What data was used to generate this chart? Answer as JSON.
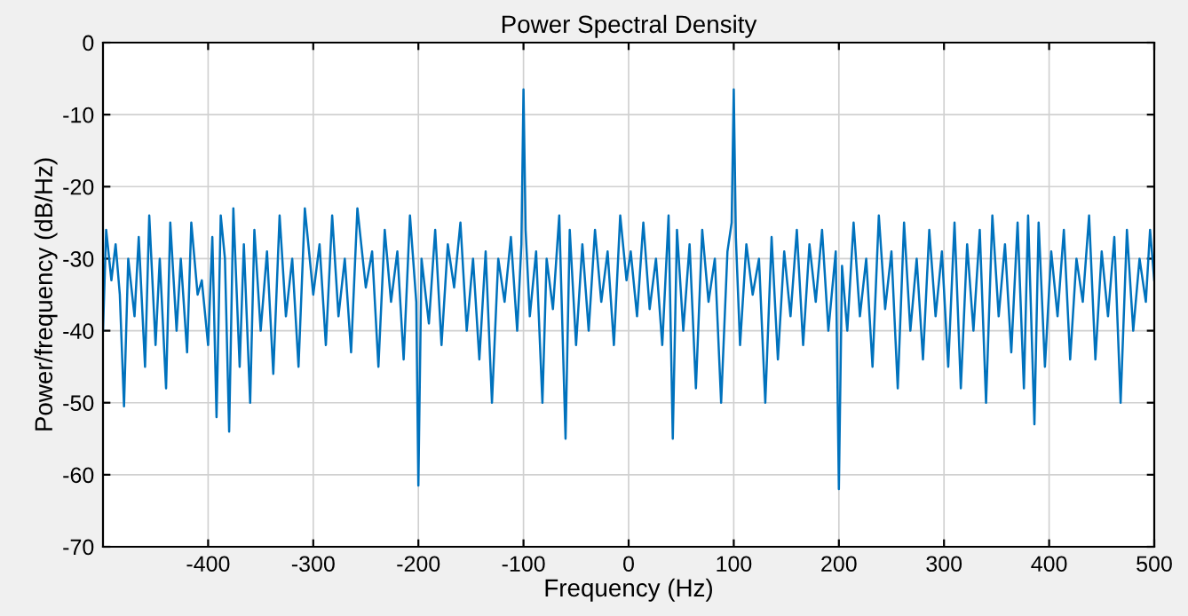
{
  "chart_data": {
    "type": "line",
    "title": "Power Spectral Density",
    "xlabel": "Frequency (Hz)",
    "ylabel": "Power/frequency (dB/Hz)",
    "xlim": [
      -500,
      500
    ],
    "xticks": [
      -400,
      -300,
      -200,
      -100,
      0,
      100,
      200,
      300,
      400,
      500
    ],
    "ylim": [
      -70,
      0
    ],
    "yticks": [
      -70,
      -60,
      -50,
      -40,
      -30,
      -20,
      -10,
      0
    ],
    "grid": true,
    "series": [
      {
        "color": "#0072bd",
        "x": [
          -500,
          -497,
          -492,
          -488,
          -484,
          -480,
          -476,
          -470,
          -466,
          -460,
          -456,
          -450,
          -446,
          -440,
          -436,
          -430,
          -426,
          -420,
          -416,
          -410,
          -406,
          -400,
          -396,
          -392,
          -388,
          -384,
          -380,
          -376,
          -370,
          -366,
          -360,
          -356,
          -350,
          -344,
          -338,
          -332,
          -326,
          -320,
          -314,
          -308,
          -300,
          -294,
          -288,
          -282,
          -276,
          -270,
          -264,
          -258,
          -250,
          -244,
          -238,
          -232,
          -226,
          -220,
          -214,
          -208,
          -202,
          -200,
          -197,
          -190,
          -184,
          -178,
          -172,
          -166,
          -160,
          -154,
          -148,
          -142,
          -136,
          -130,
          -124,
          -118,
          -112,
          -106,
          -102,
          -100,
          -98,
          -94,
          -88,
          -82,
          -78,
          -72,
          -66,
          -60,
          -56,
          -50,
          -44,
          -38,
          -32,
          -26,
          -20,
          -14,
          -8,
          -2,
          2,
          8,
          14,
          20,
          26,
          32,
          38,
          42,
          46,
          52,
          58,
          64,
          70,
          76,
          82,
          88,
          94,
          98,
          100,
          102,
          106,
          112,
          118,
          124,
          130,
          136,
          142,
          148,
          154,
          160,
          166,
          172,
          178,
          184,
          190,
          197,
          200,
          203,
          208,
          214,
          220,
          226,
          232,
          238,
          244,
          250,
          256,
          262,
          268,
          274,
          280,
          286,
          292,
          298,
          304,
          310,
          316,
          322,
          328,
          334,
          340,
          346,
          352,
          358,
          364,
          370,
          376,
          380,
          386,
          390,
          396,
          402,
          408,
          414,
          420,
          426,
          432,
          438,
          444,
          450,
          456,
          462,
          468,
          474,
          480,
          486,
          492,
          496,
          500
        ],
        "values": [
          -40,
          -26,
          -33,
          -28,
          -35,
          -50.5,
          -30,
          -38,
          -27,
          -45,
          -24,
          -42,
          -30,
          -48,
          -25,
          -40,
          -30,
          -43,
          -25,
          -35,
          -33,
          -42,
          -27,
          -52,
          -24,
          -30,
          -54,
          -23,
          -45,
          -28,
          -50,
          -26,
          -40,
          -29,
          -46,
          -24,
          -38,
          -30,
          -45,
          -23,
          -35,
          -28,
          -42,
          -24,
          -38,
          -30,
          -43,
          -23,
          -34,
          -29,
          -45,
          -26,
          -36,
          -29,
          -44,
          -24,
          -36,
          -61.5,
          -30,
          -39,
          -26,
          -42,
          -28,
          -34,
          -25,
          -40,
          -30,
          -44,
          -29,
          -50,
          -30,
          -36,
          -27,
          -40,
          -28,
          -6.5,
          -26,
          -38,
          -29,
          -50,
          -30,
          -37,
          -24,
          -55,
          -26,
          -42,
          -28,
          -40,
          -26,
          -36,
          -29,
          -42,
          -24,
          -33,
          -29,
          -38,
          -25,
          -37,
          -30,
          -42,
          -24,
          -55,
          -26,
          -40,
          -28,
          -48,
          -26,
          -36,
          -30,
          -50,
          -29,
          -25,
          -6.5,
          -27,
          -42,
          -28,
          -35,
          -30,
          -50,
          -27,
          -44,
          -29,
          -38,
          -26,
          -42,
          -28,
          -36,
          -26,
          -40,
          -29,
          -62,
          -31,
          -40,
          -25,
          -38,
          -30,
          -45,
          -24,
          -37,
          -29,
          -48,
          -25,
          -40,
          -30,
          -44,
          -26,
          -38,
          -29,
          -45,
          -25,
          -48,
          -28,
          -40,
          -26,
          -50,
          -24,
          -38,
          -28,
          -43,
          -25,
          -48,
          -24,
          -53,
          -25,
          -45,
          -29,
          -38,
          -26,
          -44,
          -30,
          -36,
          -24,
          -44,
          -29,
          -38,
          -27,
          -50,
          -26,
          -40,
          -30,
          -36,
          -26,
          -33
        ]
      }
    ]
  }
}
